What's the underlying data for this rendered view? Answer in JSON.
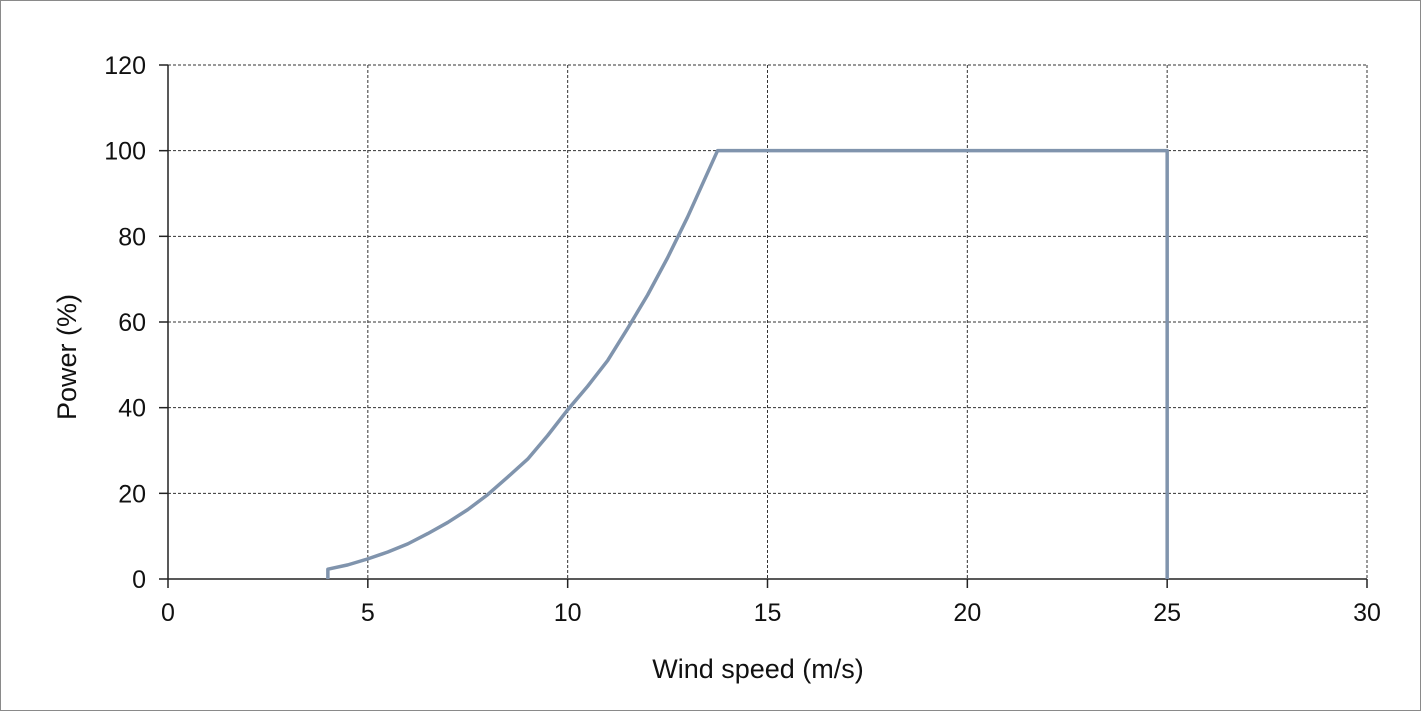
{
  "chart_data": {
    "type": "line",
    "title": "",
    "xlabel": "Wind speed (m/s)",
    "ylabel": "Power (%)",
    "xlim": [
      0,
      30
    ],
    "ylim": [
      0,
      120
    ],
    "xticks": [
      0,
      5,
      10,
      15,
      20,
      25,
      30
    ],
    "yticks": [
      0,
      20,
      40,
      60,
      80,
      100,
      120
    ],
    "grid": true,
    "legend": "none",
    "series": [
      {
        "color": "#8094ad",
        "x": [
          4,
          4,
          4.5,
          5,
          5.5,
          6,
          6.5,
          7,
          7.5,
          8,
          8.5,
          9,
          9.5,
          10,
          10.5,
          11,
          11.5,
          12,
          12.5,
          13,
          13.75,
          25,
          25
        ],
        "y": [
          0,
          2.3,
          3.3,
          4.7,
          6.3,
          8.2,
          10.6,
          13.2,
          16.2,
          19.7,
          23.8,
          28,
          33.5,
          39.5,
          45,
          51,
          58.5,
          66.3,
          75,
          84.5,
          100,
          100,
          0
        ]
      }
    ]
  }
}
